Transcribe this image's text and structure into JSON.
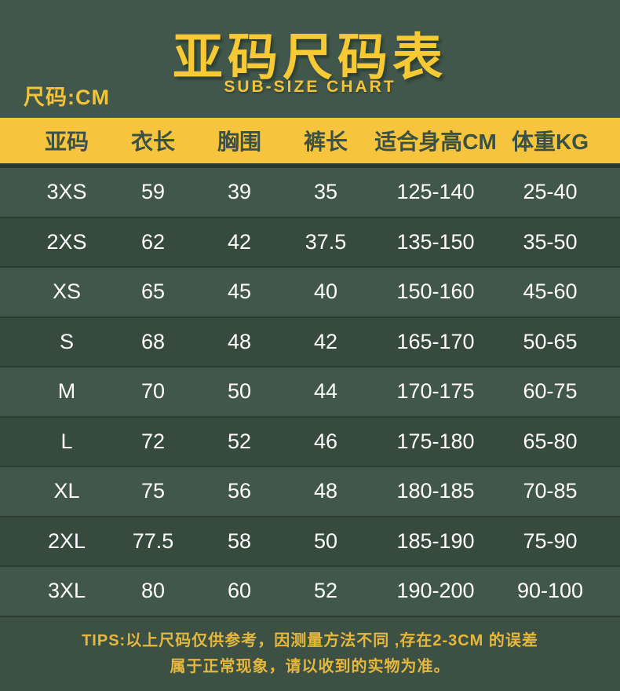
{
  "header": {
    "title": "亚码尺码表",
    "subtitle": "SUB-SIZE CHART",
    "unit_label": "尺码:CM"
  },
  "chart_data": {
    "type": "table",
    "title": "亚码尺码表 (SUB-SIZE CHART)",
    "columns": [
      "亚码",
      "衣长",
      "胸围",
      "裤长",
      "适合身高CM",
      "体重KG"
    ],
    "rows": [
      [
        "3XS",
        "59",
        "39",
        "35",
        "125-140",
        "25-40"
      ],
      [
        "2XS",
        "62",
        "42",
        "37.5",
        "135-150",
        "35-50"
      ],
      [
        "XS",
        "65",
        "45",
        "40",
        "150-160",
        "45-60"
      ],
      [
        "S",
        "68",
        "48",
        "42",
        "165-170",
        "50-65"
      ],
      [
        "M",
        "70",
        "50",
        "44",
        "170-175",
        "60-75"
      ],
      [
        "L",
        "72",
        "52",
        "46",
        "175-180",
        "65-80"
      ],
      [
        "XL",
        "75",
        "56",
        "48",
        "180-185",
        "70-85"
      ],
      [
        "2XL",
        "77.5",
        "58",
        "50",
        "185-190",
        "75-90"
      ],
      [
        "3XL",
        "80",
        "60",
        "52",
        "190-200",
        "90-100"
      ]
    ]
  },
  "tips": {
    "line1": "TIPS:以上尺码仅供参考，因测量方法不同 ,存在2-3CM 的误差",
    "line2": "属于正常现象，请以收到的实物为准。"
  },
  "colors": {
    "background_green": "#42574b",
    "row_dark_green": "#364a3e",
    "accent_yellow": "#f6c53d",
    "title_yellow": "#f7c934",
    "header_text_green": "#3c5145",
    "row_text": "#ffffff",
    "tips_text_yellow": "#e5b83d"
  }
}
